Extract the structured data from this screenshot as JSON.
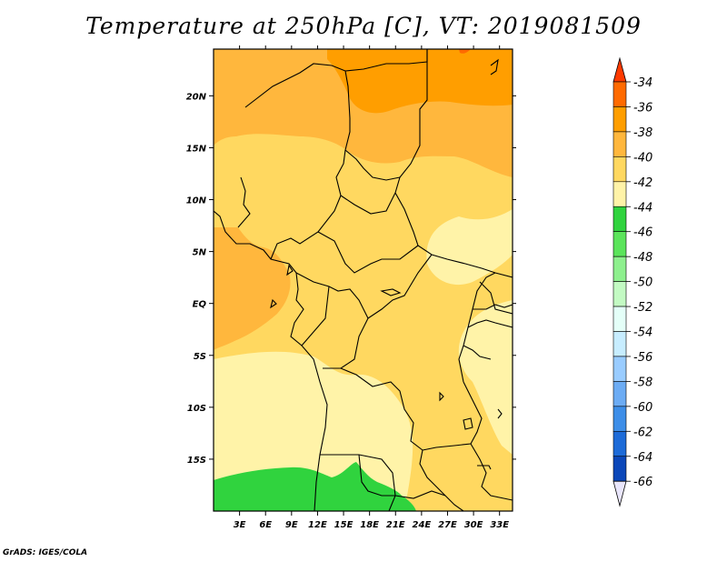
{
  "title": "Temperature at 250hPa [C], VT: 2019081509",
  "credit": "GrADS: IGES/COLA",
  "map": {
    "lon_range": [
      0,
      34.5
    ],
    "lat_range": [
      -20,
      24.5
    ],
    "lon_ticks": [
      {
        "value": 3,
        "label": "3E"
      },
      {
        "value": 6,
        "label": "6E"
      },
      {
        "value": 9,
        "label": "9E"
      },
      {
        "value": 12,
        "label": "12E"
      },
      {
        "value": 15,
        "label": "15E"
      },
      {
        "value": 18,
        "label": "18E"
      },
      {
        "value": 21,
        "label": "21E"
      },
      {
        "value": 24,
        "label": "24E"
      },
      {
        "value": 27,
        "label": "27E"
      },
      {
        "value": 30,
        "label": "30E"
      },
      {
        "value": 33,
        "label": "33E"
      }
    ],
    "lat_ticks": [
      {
        "value": 20,
        "label": "20N"
      },
      {
        "value": 15,
        "label": "15N"
      },
      {
        "value": 10,
        "label": "10N"
      },
      {
        "value": 5,
        "label": "5N"
      },
      {
        "value": 0,
        "label": "EQ"
      },
      {
        "value": -5,
        "label": "5S"
      },
      {
        "value": -10,
        "label": "10S"
      },
      {
        "value": -15,
        "label": "15S"
      }
    ]
  },
  "colorbar": {
    "labels": [
      "-34",
      "-36",
      "-38",
      "-40",
      "-42",
      "-44",
      "-46",
      "-48",
      "-50",
      "-52",
      "-54",
      "-56",
      "-58",
      "-60",
      "-62",
      "-64",
      "-66"
    ],
    "colors": [
      "#ff3a00",
      "#ff6a00",
      "#ff9e00",
      "#ffb73d",
      "#ffd860",
      "#fff3a8",
      "#30d33e",
      "#5be45b",
      "#8ef08e",
      "#c3fac3",
      "#e4fff8",
      "#c7edff",
      "#99ccff",
      "#6cacf4",
      "#3d8ee8",
      "#1d6bd8",
      "#0b47b9",
      "#000a73",
      "#e9e6fb"
    ]
  }
}
